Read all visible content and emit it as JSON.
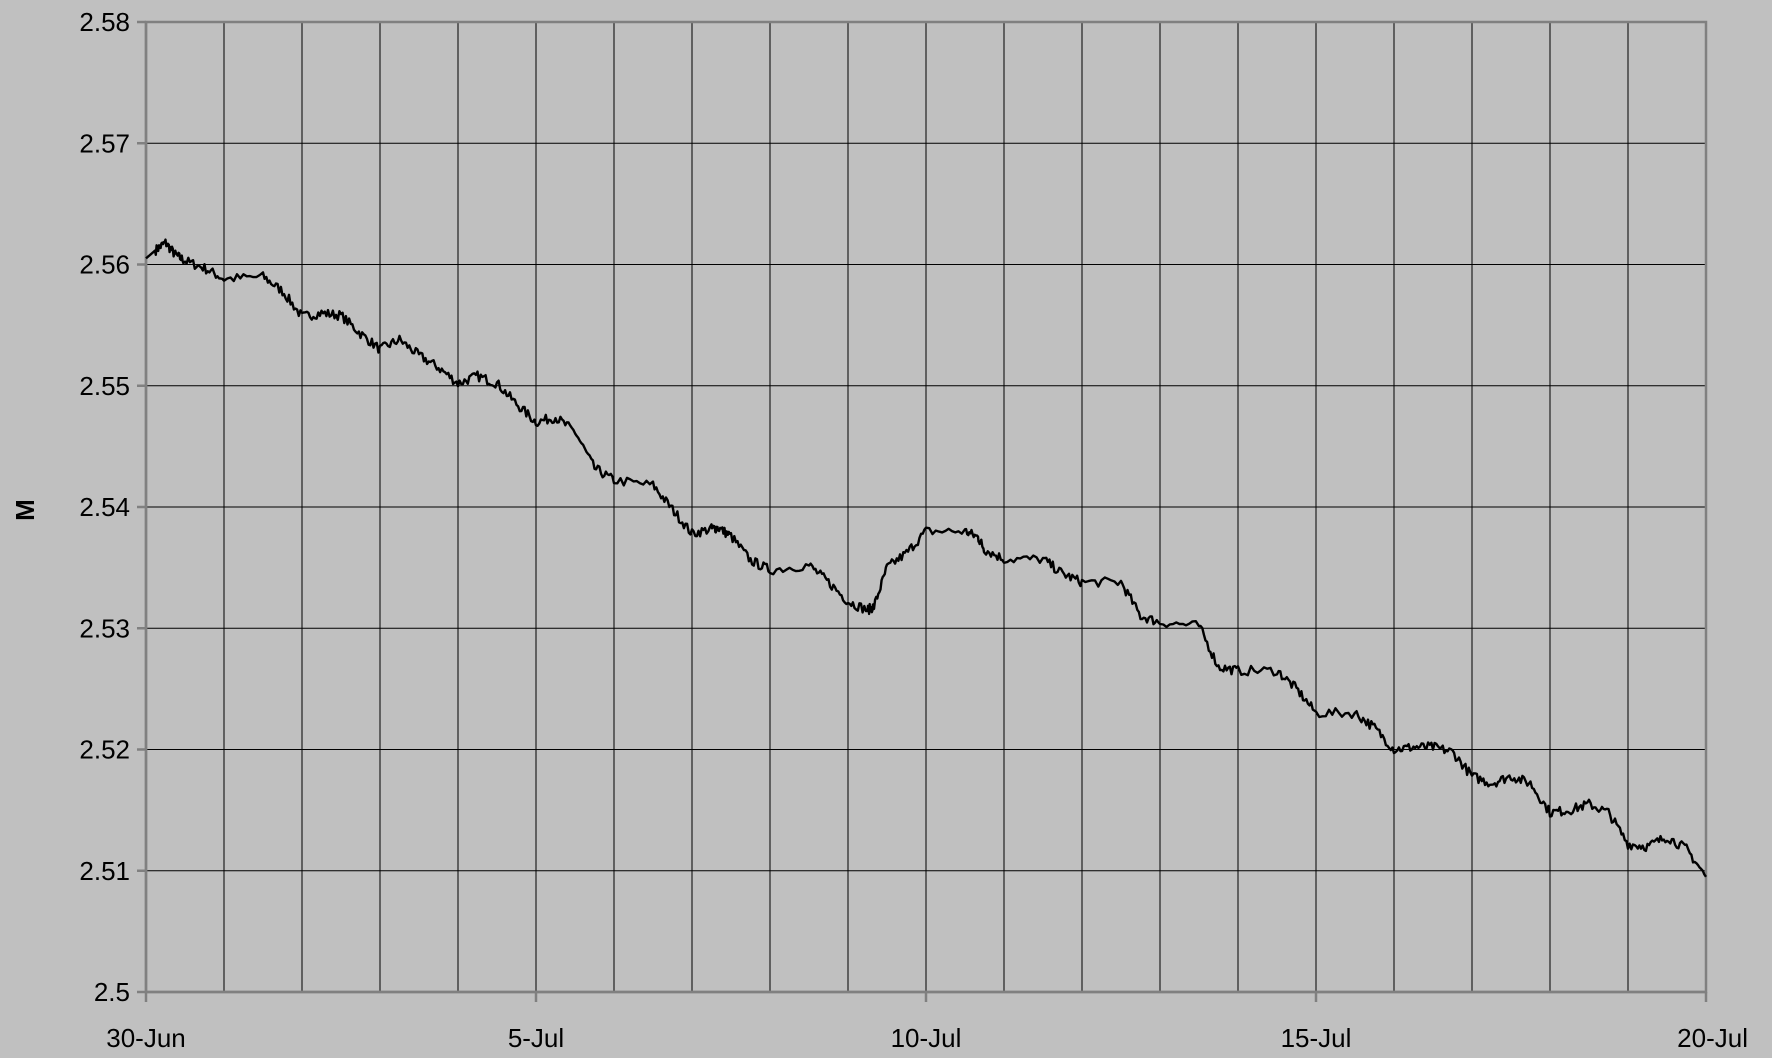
{
  "chart_data": {
    "type": "line",
    "title": "",
    "xlabel": "",
    "ylabel": "M",
    "x_range": [
      "2011-06-30",
      "2011-07-20"
    ],
    "ylim": [
      2.5,
      2.58
    ],
    "y_ticks": [
      2.5,
      2.51,
      2.52,
      2.53,
      2.54,
      2.55,
      2.56,
      2.57,
      2.58
    ],
    "y_tick_labels": [
      "2.5",
      "2.51",
      "2.52",
      "2.53",
      "2.54",
      "2.55",
      "2.56",
      "2.57",
      "2.58"
    ],
    "x_ticks": [
      "2011-06-30",
      "2011-07-05",
      "2011-07-10",
      "2011-07-15",
      "2011-07-20"
    ],
    "x_tick_labels": [
      "30-Jun",
      "5-Jul",
      "10-Jul",
      "15-Jul",
      "20-Jul"
    ],
    "grid": true,
    "vertical_gridlines": "daily",
    "legend": "none",
    "colors": {
      "background": "#c0c0c0",
      "plot_background": "#c0c0c0",
      "line": "#000000",
      "gridline": "#000000",
      "axis": "#808080"
    },
    "series": [
      {
        "x": [
          "2011-06-30 00:00",
          "2011-06-30 03:00",
          "2011-06-30 06:00",
          "2011-06-30 09:00",
          "2011-06-30 12:00",
          "2011-06-30 18:00",
          "2011-07-01 00:00",
          "2011-07-01 12:00",
          "2011-07-01 18:00",
          "2011-07-02 00:00",
          "2011-07-02 06:00",
          "2011-07-02 12:00",
          "2011-07-02 18:00",
          "2011-07-03 00:00",
          "2011-07-03 06:00",
          "2011-07-03 12:00",
          "2011-07-03 18:00",
          "2011-07-04 00:00",
          "2011-07-04 06:00",
          "2011-07-04 12:00",
          "2011-07-04 18:00",
          "2011-07-05 00:00",
          "2011-07-05 06:00",
          "2011-07-05 12:00",
          "2011-07-05 18:00",
          "2011-07-06 00:00",
          "2011-07-06 12:00",
          "2011-07-06 18:00",
          "2011-07-07 00:00",
          "2011-07-07 06:00",
          "2011-07-07 08:00",
          "2011-07-07 12:00",
          "2011-07-07 18:00",
          "2011-07-08 00:00",
          "2011-07-08 12:00",
          "2011-07-08 18:00",
          "2011-07-09 00:00",
          "2011-07-09 06:00",
          "2011-07-09 08:00",
          "2011-07-09 12:00",
          "2011-07-09 18:00",
          "2011-07-10 00:00",
          "2011-07-10 12:00",
          "2011-07-10 16:00",
          "2011-07-10 18:00",
          "2011-07-11 00:00",
          "2011-07-11 12:00",
          "2011-07-11 18:00",
          "2011-07-12 00:00",
          "2011-07-12 12:00",
          "2011-07-12 18:00",
          "2011-07-13 00:00",
          "2011-07-13 12:00",
          "2011-07-13 18:00",
          "2011-07-14 00:00",
          "2011-07-14 12:00",
          "2011-07-14 18:00",
          "2011-07-15 00:00",
          "2011-07-15 12:00",
          "2011-07-15 18:00",
          "2011-07-16 00:00",
          "2011-07-16 06:00",
          "2011-07-16 12:00",
          "2011-07-16 18:00",
          "2011-07-17 00:00",
          "2011-07-17 06:00",
          "2011-07-17 12:00",
          "2011-07-17 18:00",
          "2011-07-18 00:00",
          "2011-07-18 06:00",
          "2011-07-18 12:00",
          "2011-07-18 18:00",
          "2011-07-19 00:00",
          "2011-07-19 06:00",
          "2011-07-19 12:00",
          "2011-07-19 18:00",
          "2011-07-20 00:00"
        ],
        "y": [
          2.5605,
          2.5612,
          2.5618,
          2.5608,
          2.5603,
          2.5597,
          2.5588,
          2.559,
          2.5578,
          2.5557,
          2.556,
          2.5558,
          2.5543,
          2.553,
          2.5538,
          2.5525,
          2.5515,
          2.5502,
          2.5508,
          2.5502,
          2.5485,
          2.547,
          2.5474,
          2.5462,
          2.5432,
          2.5422,
          2.5418,
          2.5398,
          2.5378,
          2.5382,
          2.5383,
          2.5376,
          2.5356,
          2.5348,
          2.5352,
          2.5338,
          2.5322,
          2.5315,
          2.5318,
          2.535,
          2.5362,
          2.538,
          2.538,
          2.5375,
          2.5365,
          2.5357,
          2.5357,
          2.5345,
          2.5338,
          2.5338,
          2.531,
          2.5305,
          2.5302,
          2.5268,
          2.5265,
          2.5265,
          2.525,
          2.523,
          2.523,
          2.5218,
          2.52,
          2.5202,
          2.5202,
          2.5198,
          2.5178,
          2.5172,
          2.5178,
          2.5172,
          2.5148,
          2.515,
          2.5155,
          2.5148,
          2.5122,
          2.512,
          2.5128,
          2.5118,
          2.5095
        ]
      }
    ]
  }
}
